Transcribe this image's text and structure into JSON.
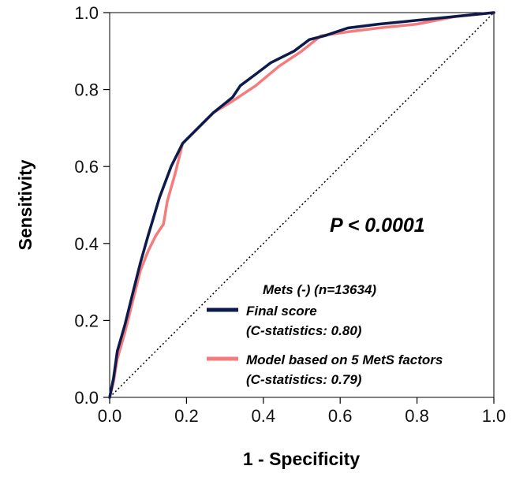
{
  "chart_data": {
    "type": "line",
    "xlabel": "1 - Specificity",
    "ylabel": "Sensitivity",
    "xlim": [
      0,
      1
    ],
    "ylim": [
      0,
      1
    ],
    "x_ticks": [
      "0.0",
      "0.2",
      "0.4",
      "0.6",
      "0.8",
      "1.0"
    ],
    "y_ticks": [
      "0.0",
      "0.2",
      "0.4",
      "0.6",
      "0.8",
      "1.0"
    ],
    "grid": false,
    "legend_position": "bottom-right",
    "annotation": "P < 0.0001",
    "legend_title": "Mets (-) (n=13634)",
    "reference_line": {
      "style": "dotted",
      "from": [
        0,
        0
      ],
      "to": [
        1,
        1
      ]
    },
    "series": [
      {
        "name": "Final score",
        "subtitle": "(C-statistics: 0.80)",
        "color": "#0d1b4c",
        "points": [
          [
            0,
            0
          ],
          [
            0.01,
            0.05
          ],
          [
            0.02,
            0.12
          ],
          [
            0.04,
            0.19
          ],
          [
            0.06,
            0.27
          ],
          [
            0.08,
            0.35
          ],
          [
            0.1,
            0.42
          ],
          [
            0.13,
            0.52
          ],
          [
            0.16,
            0.6
          ],
          [
            0.19,
            0.66
          ],
          [
            0.23,
            0.7
          ],
          [
            0.27,
            0.74
          ],
          [
            0.32,
            0.78
          ],
          [
            0.34,
            0.81
          ],
          [
            0.38,
            0.84
          ],
          [
            0.42,
            0.87
          ],
          [
            0.48,
            0.9
          ],
          [
            0.52,
            0.93
          ],
          [
            0.56,
            0.94
          ],
          [
            0.62,
            0.96
          ],
          [
            0.7,
            0.97
          ],
          [
            0.8,
            0.98
          ],
          [
            0.9,
            0.99
          ],
          [
            1.0,
            1.0
          ]
        ]
      },
      {
        "name": "Model based on 5 MetS factors",
        "subtitle": "(C-statistics: 0.79)",
        "color": "#f47c7c",
        "points": [
          [
            0,
            0
          ],
          [
            0.01,
            0.04
          ],
          [
            0.02,
            0.1
          ],
          [
            0.04,
            0.17
          ],
          [
            0.06,
            0.25
          ],
          [
            0.08,
            0.33
          ],
          [
            0.1,
            0.38
          ],
          [
            0.12,
            0.42
          ],
          [
            0.14,
            0.45
          ],
          [
            0.15,
            0.51
          ],
          [
            0.17,
            0.58
          ],
          [
            0.19,
            0.66
          ],
          [
            0.23,
            0.7
          ],
          [
            0.27,
            0.74
          ],
          [
            0.32,
            0.77
          ],
          [
            0.38,
            0.81
          ],
          [
            0.44,
            0.86
          ],
          [
            0.5,
            0.9
          ],
          [
            0.55,
            0.94
          ],
          [
            0.62,
            0.95
          ],
          [
            0.7,
            0.96
          ],
          [
            0.8,
            0.97
          ],
          [
            0.9,
            0.99
          ],
          [
            1.0,
            1.0
          ]
        ]
      }
    ]
  }
}
